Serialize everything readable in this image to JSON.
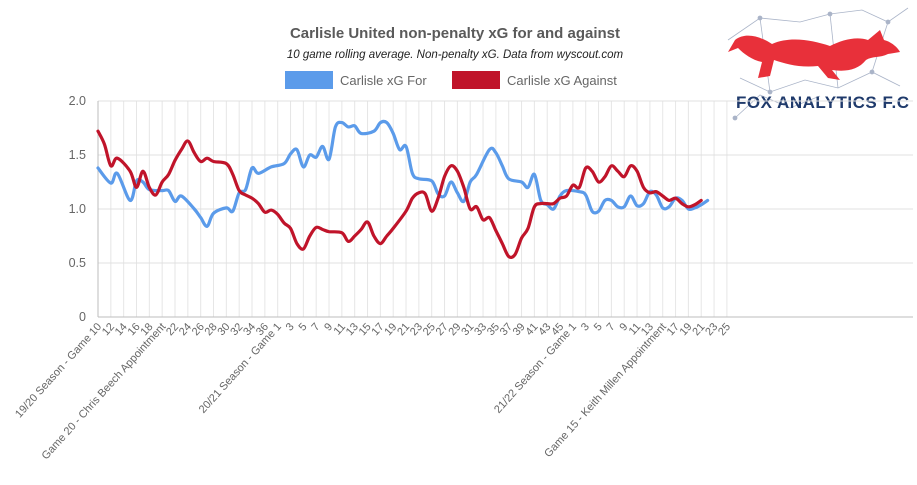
{
  "chart_data": {
    "type": "line",
    "title": "Carlisle United non-penalty xG for and against",
    "subtitle": "10 game rolling average. Non-penalty xG. Data from wyscout.com",
    "ylim": [
      0,
      2.0
    ],
    "yticks": [
      "0",
      "0.5",
      "1.0",
      "1.5",
      "2.0"
    ],
    "grid": true,
    "legend_position": "top-center",
    "x_count": 128,
    "xtick_labels": [
      {
        "i": 0,
        "label": "19/20 Season - Game 10"
      },
      {
        "i": 2,
        "label": "12"
      },
      {
        "i": 4,
        "label": "14"
      },
      {
        "i": 6,
        "label": "16"
      },
      {
        "i": 8,
        "label": "18"
      },
      {
        "i": 10,
        "label": "Game 20 - Chris Beech Appointment"
      },
      {
        "i": 12,
        "label": "22"
      },
      {
        "i": 14,
        "label": "24"
      },
      {
        "i": 16,
        "label": "26"
      },
      {
        "i": 18,
        "label": "28"
      },
      {
        "i": 20,
        "label": "30"
      },
      {
        "i": 22,
        "label": "32"
      },
      {
        "i": 24,
        "label": "34"
      },
      {
        "i": 26,
        "label": "36"
      },
      {
        "i": 28,
        "label": "20/21 Season - Game 1"
      },
      {
        "i": 30,
        "label": "3"
      },
      {
        "i": 32,
        "label": "5"
      },
      {
        "i": 34,
        "label": "7"
      },
      {
        "i": 36,
        "label": "9"
      },
      {
        "i": 38,
        "label": "11"
      },
      {
        "i": 40,
        "label": "13"
      },
      {
        "i": 42,
        "label": "15"
      },
      {
        "i": 44,
        "label": "17"
      },
      {
        "i": 46,
        "label": "19"
      },
      {
        "i": 48,
        "label": "21"
      },
      {
        "i": 50,
        "label": "23"
      },
      {
        "i": 52,
        "label": "25"
      },
      {
        "i": 54,
        "label": "27"
      },
      {
        "i": 56,
        "label": "29"
      },
      {
        "i": 58,
        "label": "31"
      },
      {
        "i": 60,
        "label": "33"
      },
      {
        "i": 62,
        "label": "35"
      },
      {
        "i": 64,
        "label": "37"
      },
      {
        "i": 66,
        "label": "39"
      },
      {
        "i": 68,
        "label": "41"
      },
      {
        "i": 70,
        "label": "43"
      },
      {
        "i": 72,
        "label": "45"
      },
      {
        "i": 74,
        "label": "21/22 Season - Game 1"
      },
      {
        "i": 76,
        "label": "3"
      },
      {
        "i": 78,
        "label": "5"
      },
      {
        "i": 80,
        "label": "7"
      },
      {
        "i": 82,
        "label": "9"
      },
      {
        "i": 84,
        "label": "11"
      },
      {
        "i": 86,
        "label": "13"
      },
      {
        "i": 88,
        "label": "Game 15 - Keith Millen Appointment"
      },
      {
        "i": 90,
        "label": "17"
      },
      {
        "i": 92,
        "label": "19"
      },
      {
        "i": 94,
        "label": "21"
      },
      {
        "i": 96,
        "label": "23"
      },
      {
        "i": 98,
        "label": "25"
      }
    ],
    "series": [
      {
        "name": "Carlisle xG For",
        "color": "#5b9bea",
        "keyframes": [
          [
            0,
            1.38
          ],
          [
            2,
            1.24
          ],
          [
            3,
            1.33
          ],
          [
            5,
            1.08
          ],
          [
            6,
            1.26
          ],
          [
            7,
            1.25
          ],
          [
            8,
            1.18
          ],
          [
            10,
            1.17
          ],
          [
            11,
            1.17
          ],
          [
            12,
            1.07
          ],
          [
            13,
            1.12
          ],
          [
            15,
            1.0
          ],
          [
            16,
            0.92
          ],
          [
            17,
            0.84
          ],
          [
            18,
            0.96
          ],
          [
            20,
            1.01
          ],
          [
            21,
            0.98
          ],
          [
            22,
            1.15
          ],
          [
            23,
            1.18
          ],
          [
            24,
            1.38
          ],
          [
            25,
            1.33
          ],
          [
            27,
            1.39
          ],
          [
            29,
            1.42
          ],
          [
            30,
            1.51
          ],
          [
            31,
            1.55
          ],
          [
            32,
            1.39
          ],
          [
            33,
            1.5
          ],
          [
            34,
            1.48
          ],
          [
            35,
            1.58
          ],
          [
            36,
            1.46
          ],
          [
            37,
            1.76
          ],
          [
            38,
            1.8
          ],
          [
            39,
            1.76
          ],
          [
            40,
            1.77
          ],
          [
            41,
            1.7
          ],
          [
            43,
            1.72
          ],
          [
            44,
            1.8
          ],
          [
            45,
            1.8
          ],
          [
            46,
            1.7
          ],
          [
            47,
            1.55
          ],
          [
            48,
            1.58
          ],
          [
            49,
            1.33
          ],
          [
            50,
            1.28
          ],
          [
            52,
            1.26
          ],
          [
            53,
            1.14
          ],
          [
            54,
            1.12
          ],
          [
            55,
            1.25
          ],
          [
            56,
            1.15
          ],
          [
            57,
            1.07
          ],
          [
            58,
            1.25
          ],
          [
            59,
            1.32
          ],
          [
            61,
            1.55
          ],
          [
            62,
            1.52
          ],
          [
            63,
            1.4
          ],
          [
            64,
            1.28
          ],
          [
            66,
            1.25
          ],
          [
            67,
            1.2
          ],
          [
            68,
            1.32
          ],
          [
            69,
            1.08
          ],
          [
            70,
            1.04
          ],
          [
            71,
            1.0
          ],
          [
            72,
            1.12
          ],
          [
            73,
            1.17
          ],
          [
            75,
            1.16
          ],
          [
            76,
            1.13
          ],
          [
            77,
            0.98
          ],
          [
            78,
            0.98
          ],
          [
            79,
            1.08
          ],
          [
            80,
            1.08
          ],
          [
            81,
            1.02
          ],
          [
            82,
            1.02
          ],
          [
            83,
            1.12
          ],
          [
            84,
            1.03
          ],
          [
            85,
            1.05
          ],
          [
            86,
            1.16
          ],
          [
            87,
            1.13
          ],
          [
            88,
            1.01
          ],
          [
            89,
            1.02
          ],
          [
            90,
            1.1
          ],
          [
            91,
            1.08
          ],
          [
            92,
            1.0
          ],
          [
            93,
            1.01
          ],
          [
            94,
            1.04
          ],
          [
            95,
            1.08
          ]
        ]
      },
      {
        "name": "Carlisle xG Against",
        "color": "#c0142a",
        "keyframes": [
          [
            0,
            1.72
          ],
          [
            1,
            1.6
          ],
          [
            2,
            1.4
          ],
          [
            3,
            1.47
          ],
          [
            5,
            1.35
          ],
          [
            6,
            1.2
          ],
          [
            7,
            1.35
          ],
          [
            8,
            1.2
          ],
          [
            9,
            1.13
          ],
          [
            10,
            1.25
          ],
          [
            11,
            1.32
          ],
          [
            12,
            1.45
          ],
          [
            13,
            1.55
          ],
          [
            14,
            1.63
          ],
          [
            15,
            1.52
          ],
          [
            16,
            1.44
          ],
          [
            17,
            1.47
          ],
          [
            18,
            1.44
          ],
          [
            20,
            1.42
          ],
          [
            21,
            1.32
          ],
          [
            22,
            1.17
          ],
          [
            23,
            1.13
          ],
          [
            24,
            1.1
          ],
          [
            25,
            1.05
          ],
          [
            26,
            0.97
          ],
          [
            27,
            0.99
          ],
          [
            28,
            0.95
          ],
          [
            29,
            0.87
          ],
          [
            30,
            0.82
          ],
          [
            31,
            0.68
          ],
          [
            32,
            0.63
          ],
          [
            33,
            0.75
          ],
          [
            34,
            0.83
          ],
          [
            35,
            0.81
          ],
          [
            36,
            0.79
          ],
          [
            38,
            0.78
          ],
          [
            39,
            0.7
          ],
          [
            40,
            0.75
          ],
          [
            41,
            0.81
          ],
          [
            42,
            0.88
          ],
          [
            43,
            0.75
          ],
          [
            44,
            0.68
          ],
          [
            45,
            0.75
          ],
          [
            46,
            0.82
          ],
          [
            48,
            0.98
          ],
          [
            49,
            1.1
          ],
          [
            50,
            1.15
          ],
          [
            51,
            1.14
          ],
          [
            52,
            0.98
          ],
          [
            53,
            1.1
          ],
          [
            54,
            1.3
          ],
          [
            55,
            1.4
          ],
          [
            56,
            1.35
          ],
          [
            57,
            1.2
          ],
          [
            58,
            1.0
          ],
          [
            59,
            1.02
          ],
          [
            60,
            0.9
          ],
          [
            61,
            0.92
          ],
          [
            62,
            0.8
          ],
          [
            63,
            0.68
          ],
          [
            64,
            0.56
          ],
          [
            65,
            0.58
          ],
          [
            66,
            0.73
          ],
          [
            67,
            0.82
          ],
          [
            68,
            1.02
          ],
          [
            69,
            1.05
          ],
          [
            70,
            1.05
          ],
          [
            71,
            1.05
          ],
          [
            72,
            1.1
          ],
          [
            73,
            1.12
          ],
          [
            74,
            1.22
          ],
          [
            75,
            1.2
          ],
          [
            76,
            1.38
          ],
          [
            77,
            1.35
          ],
          [
            78,
            1.25
          ],
          [
            79,
            1.3
          ],
          [
            80,
            1.4
          ],
          [
            81,
            1.35
          ],
          [
            82,
            1.3
          ],
          [
            83,
            1.4
          ],
          [
            84,
            1.35
          ],
          [
            85,
            1.2
          ],
          [
            86,
            1.15
          ],
          [
            87,
            1.16
          ],
          [
            88,
            1.12
          ],
          [
            89,
            1.08
          ],
          [
            90,
            1.1
          ],
          [
            91,
            1.05
          ],
          [
            92,
            1.02
          ],
          [
            93,
            1.04
          ],
          [
            94,
            1.08
          ]
        ]
      }
    ]
  },
  "logo": {
    "text": "FOX ANALYTICS F.C",
    "accent_color": "#e8303a",
    "text_color": "#1f3a6b"
  }
}
